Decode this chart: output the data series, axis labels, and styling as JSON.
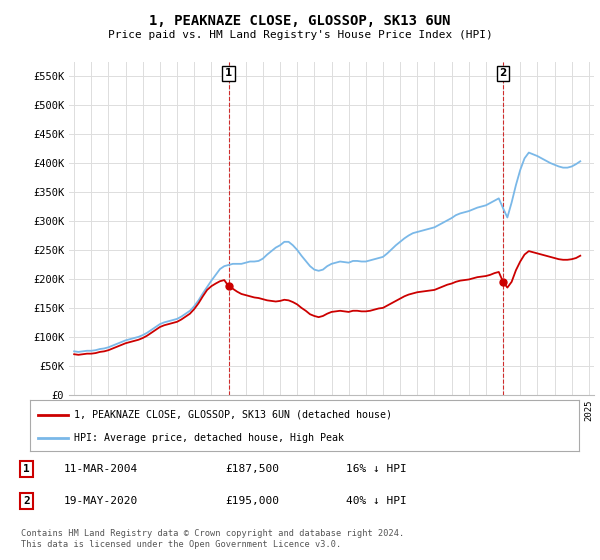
{
  "title": "1, PEAKNAZE CLOSE, GLOSSOP, SK13 6UN",
  "subtitle": "Price paid vs. HM Land Registry's House Price Index (HPI)",
  "ylim": [
    0,
    575000
  ],
  "yticks": [
    0,
    50000,
    100000,
    150000,
    200000,
    250000,
    300000,
    350000,
    400000,
    450000,
    500000,
    550000
  ],
  "ytick_labels": [
    "£0",
    "£50K",
    "£100K",
    "£150K",
    "£200K",
    "£250K",
    "£300K",
    "£350K",
    "£400K",
    "£450K",
    "£500K",
    "£550K"
  ],
  "hpi_color": "#7ab8e8",
  "price_color": "#cc0000",
  "sale1_date": "11-MAR-2004",
  "sale1_price": "£187,500",
  "sale1_pct": "16% ↓ HPI",
  "sale2_date": "19-MAY-2020",
  "sale2_price": "£195,000",
  "sale2_pct": "40% ↓ HPI",
  "legend_line1": "1, PEAKNAZE CLOSE, GLOSSOP, SK13 6UN (detached house)",
  "legend_line2": "HPI: Average price, detached house, High Peak",
  "footer": "Contains HM Land Registry data © Crown copyright and database right 2024.\nThis data is licensed under the Open Government Licence v3.0.",
  "background_color": "#ffffff",
  "grid_color": "#dddddd",
  "hpi_data_x": [
    1995.0,
    1995.25,
    1995.5,
    1995.75,
    1996.0,
    1996.25,
    1996.5,
    1996.75,
    1997.0,
    1997.25,
    1997.5,
    1997.75,
    1998.0,
    1998.25,
    1998.5,
    1998.75,
    1999.0,
    1999.25,
    1999.5,
    1999.75,
    2000.0,
    2000.25,
    2000.5,
    2000.75,
    2001.0,
    2001.25,
    2001.5,
    2001.75,
    2002.0,
    2002.25,
    2002.5,
    2002.75,
    2003.0,
    2003.25,
    2003.5,
    2003.75,
    2004.0,
    2004.25,
    2004.5,
    2004.75,
    2005.0,
    2005.25,
    2005.5,
    2005.75,
    2006.0,
    2006.25,
    2006.5,
    2006.75,
    2007.0,
    2007.25,
    2007.5,
    2007.75,
    2008.0,
    2008.25,
    2008.5,
    2008.75,
    2009.0,
    2009.25,
    2009.5,
    2009.75,
    2010.0,
    2010.25,
    2010.5,
    2010.75,
    2011.0,
    2011.25,
    2011.5,
    2011.75,
    2012.0,
    2012.25,
    2012.5,
    2012.75,
    2013.0,
    2013.25,
    2013.5,
    2013.75,
    2014.0,
    2014.25,
    2014.5,
    2014.75,
    2015.0,
    2015.25,
    2015.5,
    2015.75,
    2016.0,
    2016.25,
    2016.5,
    2016.75,
    2017.0,
    2017.25,
    2017.5,
    2017.75,
    2018.0,
    2018.25,
    2018.5,
    2018.75,
    2019.0,
    2019.25,
    2019.5,
    2019.75,
    2020.0,
    2020.25,
    2020.5,
    2020.75,
    2021.0,
    2021.25,
    2021.5,
    2021.75,
    2022.0,
    2022.25,
    2022.5,
    2022.75,
    2023.0,
    2023.25,
    2023.5,
    2023.75,
    2024.0,
    2024.25,
    2024.5
  ],
  "hpi_data_y": [
    75000,
    74000,
    75000,
    76000,
    76000,
    77000,
    79000,
    80000,
    82000,
    85000,
    88000,
    91000,
    94000,
    96000,
    98000,
    100000,
    103000,
    107000,
    112000,
    117000,
    122000,
    125000,
    127000,
    129000,
    131000,
    135000,
    140000,
    145000,
    153000,
    163000,
    175000,
    186000,
    197000,
    207000,
    217000,
    222000,
    224000,
    226000,
    226000,
    226000,
    228000,
    230000,
    230000,
    231000,
    235000,
    242000,
    248000,
    254000,
    258000,
    264000,
    264000,
    258000,
    250000,
    240000,
    231000,
    222000,
    216000,
    214000,
    216000,
    222000,
    226000,
    228000,
    230000,
    229000,
    228000,
    231000,
    231000,
    230000,
    230000,
    232000,
    234000,
    236000,
    238000,
    244000,
    251000,
    258000,
    264000,
    270000,
    275000,
    279000,
    281000,
    283000,
    285000,
    287000,
    289000,
    293000,
    297000,
    301000,
    305000,
    310000,
    313000,
    315000,
    317000,
    320000,
    323000,
    325000,
    327000,
    331000,
    335000,
    339000,
    322000,
    306000,
    332000,
    362000,
    388000,
    408000,
    418000,
    415000,
    412000,
    408000,
    404000,
    400000,
    397000,
    394000,
    392000,
    392000,
    394000,
    398000,
    403000
  ],
  "red_data_x": [
    1995.0,
    1995.25,
    1995.5,
    1995.75,
    1996.0,
    1996.25,
    1996.5,
    1996.75,
    1997.0,
    1997.25,
    1997.5,
    1997.75,
    1998.0,
    1998.25,
    1998.5,
    1998.75,
    1999.0,
    1999.25,
    1999.5,
    1999.75,
    2000.0,
    2000.25,
    2000.5,
    2000.75,
    2001.0,
    2001.25,
    2001.5,
    2001.75,
    2002.0,
    2002.25,
    2002.5,
    2002.75,
    2003.0,
    2003.25,
    2003.5,
    2003.75,
    2004.0,
    2004.25,
    2004.5,
    2004.75,
    2005.0,
    2005.25,
    2005.5,
    2005.75,
    2006.0,
    2006.25,
    2006.5,
    2006.75,
    2007.0,
    2007.25,
    2007.5,
    2007.75,
    2008.0,
    2008.25,
    2008.5,
    2008.75,
    2009.0,
    2009.25,
    2009.5,
    2009.75,
    2010.0,
    2010.25,
    2010.5,
    2010.75,
    2011.0,
    2011.25,
    2011.5,
    2011.75,
    2012.0,
    2012.25,
    2012.5,
    2012.75,
    2013.0,
    2013.25,
    2013.5,
    2013.75,
    2014.0,
    2014.25,
    2014.5,
    2014.75,
    2015.0,
    2015.25,
    2015.5,
    2015.75,
    2016.0,
    2016.25,
    2016.5,
    2016.75,
    2017.0,
    2017.25,
    2017.5,
    2017.75,
    2018.0,
    2018.25,
    2018.5,
    2018.75,
    2019.0,
    2019.25,
    2019.5,
    2019.75,
    2020.0,
    2020.25,
    2020.5,
    2020.75,
    2021.0,
    2021.25,
    2021.5,
    2021.75,
    2022.0,
    2022.25,
    2022.5,
    2022.75,
    2023.0,
    2023.25,
    2023.5,
    2023.75,
    2024.0,
    2024.25,
    2024.5
  ],
  "red_data_y": [
    70000,
    69000,
    70000,
    71000,
    71000,
    72000,
    74000,
    75000,
    77000,
    80000,
    83000,
    86000,
    89000,
    91000,
    93000,
    95000,
    98000,
    102000,
    107000,
    112000,
    117000,
    120000,
    122000,
    124000,
    126000,
    130000,
    135000,
    140000,
    148000,
    158000,
    170000,
    181000,
    187500,
    192000,
    196000,
    198000,
    187500,
    183000,
    178000,
    174000,
    172000,
    170000,
    168000,
    167000,
    165000,
    163000,
    162000,
    161000,
    162000,
    164000,
    163000,
    160000,
    156000,
    150000,
    145000,
    139000,
    136000,
    134000,
    136000,
    140000,
    143000,
    144000,
    145000,
    144000,
    143000,
    145000,
    145000,
    144000,
    144000,
    145000,
    147000,
    149000,
    150000,
    154000,
    158000,
    162000,
    166000,
    170000,
    173000,
    175000,
    177000,
    178000,
    179000,
    180000,
    181000,
    184000,
    187000,
    190000,
    192000,
    195000,
    197000,
    198000,
    199000,
    201000,
    203000,
    204000,
    205000,
    207000,
    210000,
    212000,
    195000,
    185000,
    195000,
    215000,
    230000,
    242000,
    248000,
    246000,
    244000,
    242000,
    240000,
    238000,
    236000,
    234000,
    233000,
    233000,
    234000,
    236000,
    240000
  ],
  "sale1_x": 2004.0,
  "sale1_y": 187500,
  "sale2_x": 2020.0,
  "sale2_y": 195000,
  "xlim": [
    1994.7,
    2025.3
  ]
}
